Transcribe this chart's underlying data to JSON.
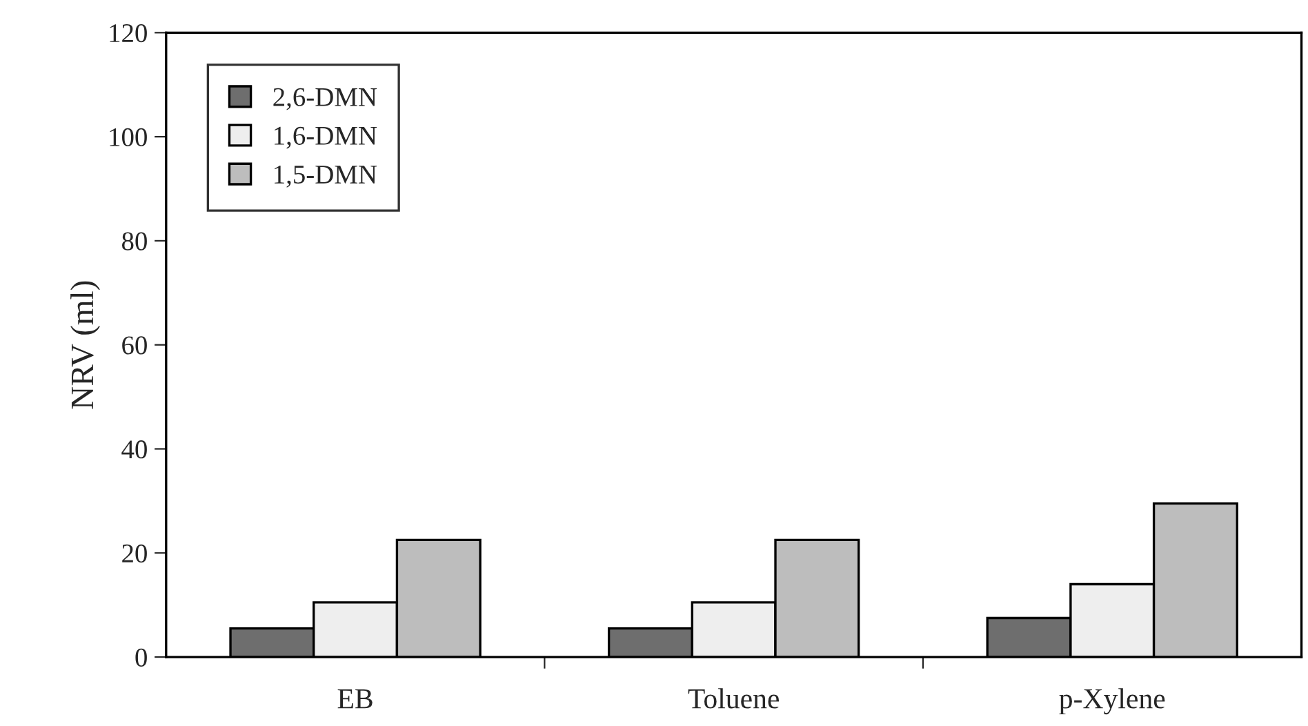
{
  "chart_data": {
    "type": "bar",
    "ylabel": "NRV (ml)",
    "categories": [
      "EB",
      "Toluene",
      "p-Xylene"
    ],
    "series": [
      {
        "name": "2,6-DMN",
        "color": "#6e6e6e",
        "values": [
          5.5,
          5.5,
          7.5
        ]
      },
      {
        "name": "1,6-DMN",
        "color": "#eeeeee",
        "values": [
          10.5,
          10.5,
          14
        ]
      },
      {
        "name": "1,5-DMN",
        "color": "#bdbdbd",
        "values": [
          22.5,
          22.5,
          29.5
        ]
      }
    ],
    "ylim": [
      0,
      120
    ],
    "yticks": [
      0,
      20,
      40,
      60,
      80,
      100,
      120
    ],
    "grid": false,
    "legend": "top left"
  }
}
